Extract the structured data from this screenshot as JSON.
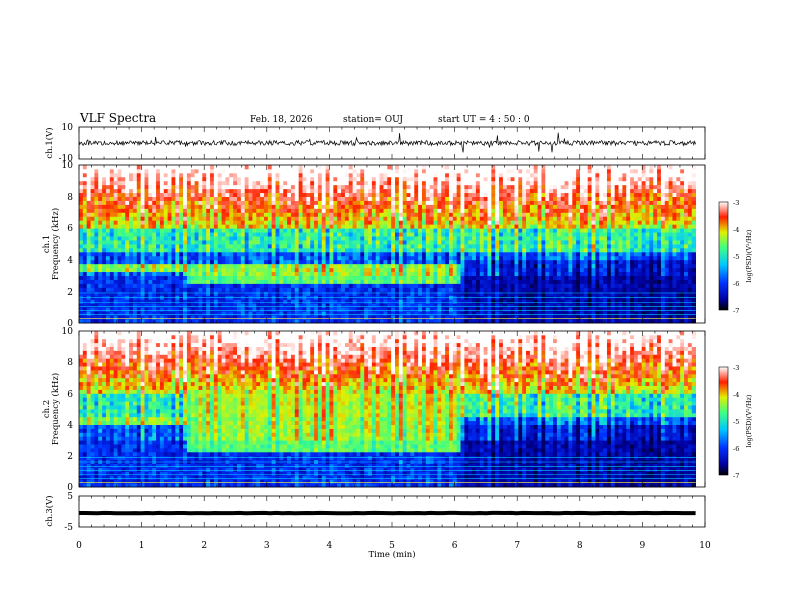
{
  "header": {
    "title": "VLF Spectra",
    "date": "Feb. 18, 2026",
    "station": "station= OUJ",
    "start": "start  UT =  4 : 50 : 0"
  },
  "chart_data": {
    "type": "heatmap",
    "title": "VLF Spectra",
    "xlabel": "Time  (min)",
    "xlim": [
      0,
      10
    ],
    "x_ticks": [
      "0",
      "1",
      "2",
      "3",
      "4",
      "5",
      "6",
      "7",
      "8",
      "9",
      "10"
    ],
    "data_end_min": 9.85,
    "panels": [
      {
        "id": "wave1",
        "type": "line",
        "ylabel": "ch.1(V)",
        "ylim": [
          -10,
          10
        ],
        "y_ticks": [
          "10",
          "-10"
        ],
        "baseline": 0,
        "noise_amplitude": 1.5
      },
      {
        "id": "spec1",
        "type": "heatmap",
        "ylabel_top": "ch.1",
        "ylabel": "Frequency  (kHz)",
        "ylim": [
          0,
          10
        ],
        "y_ticks": [
          "0",
          "2",
          "4",
          "6",
          "8",
          "10"
        ],
        "band_low_khz": 2.5,
        "band_high_khz": 3.8,
        "band_switch_min": 1.7,
        "band_end_min": 6.05,
        "colorbar": {
          "label": "log(PSD)(V²/Hz)",
          "range": [
            -7,
            -3
          ],
          "ticks": [
            "-3",
            "-4",
            "-5",
            "-6",
            "-7"
          ]
        }
      },
      {
        "id": "spec2",
        "type": "heatmap",
        "ylabel_top": "ch.2",
        "ylabel": "Frequency  (kHz)",
        "ylim": [
          0,
          10
        ],
        "y_ticks": [
          "0",
          "2",
          "4",
          "6",
          "8",
          "10"
        ],
        "band_low_khz": 2.2,
        "band_high_khz": 4.5,
        "band_switch_min": 1.7,
        "band_end_min": 6.05,
        "colorbar": {
          "label": "log(PSD)(V²/Hz)",
          "range": [
            -7,
            -3
          ],
          "ticks": [
            "-3",
            "-4",
            "-5",
            "-6",
            "-7"
          ]
        }
      },
      {
        "id": "wave3",
        "type": "line",
        "ylabel": "ch.3(V)",
        "ylim": [
          -5,
          5
        ],
        "y_ticks": [
          "5",
          "-5"
        ],
        "baseline": -0.5,
        "noise_amplitude": 0.1
      }
    ],
    "colormap": [
      "#000000",
      "#0000a0",
      "#0030ff",
      "#00c8ff",
      "#40ff80",
      "#e0f000",
      "#ff2000",
      "#ffffff"
    ]
  }
}
